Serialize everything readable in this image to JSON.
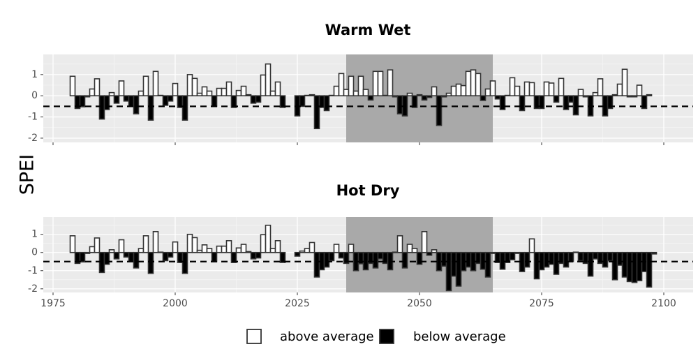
{
  "chart_data": {
    "type": "bar",
    "ylabel": "SPEI",
    "xlabel": "",
    "xlim": [
      1973,
      2106
    ],
    "ylim": [
      -2.2,
      1.95
    ],
    "x_ticks": [
      1975,
      2000,
      2025,
      2050,
      2075,
      2100
    ],
    "y_ticks": [
      1,
      0,
      -1,
      -2
    ],
    "threshold": -0.5,
    "highlight_period": [
      2035,
      2065
    ],
    "grid": true,
    "legend": {
      "position": "bottom",
      "items": [
        {
          "label": "above average",
          "fill": "#ffffff"
        },
        {
          "label": "below average",
          "fill": "#000000"
        }
      ]
    },
    "panels": [
      {
        "title": "Warm Wet",
        "segments": [
          {
            "start": 1979,
            "values": [
              0.92,
              -0.6,
              -0.52,
              -0.05,
              0.32,
              0.8,
              -1.1,
              -0.65,
              0.15,
              -0.35,
              0.7,
              -0.25,
              -0.5,
              -0.85,
              0.22,
              0.92,
              -1.15,
              1.15,
              0.02,
              -0.45,
              -0.25,
              0.58,
              -0.55,
              -1.15,
              1.0,
              0.82,
              0.12,
              0.42,
              0.22,
              -0.5,
              0.35,
              0.35,
              0.65,
              -0.55,
              0.25,
              0.45,
              0.05,
              -0.35,
              -0.3,
              0.98,
              1.5,
              0.22,
              0.65,
              -0.55
            ]
          },
          {
            "start": 2025,
            "values": [
              -0.95,
              -0.5,
              0.02,
              0.05,
              -1.55,
              -0.55,
              -0.7,
              0.02,
              0.45,
              1.05,
              0.3,
              0.92,
              0.22,
              0.92,
              0.3,
              -0.2,
              1.15,
              1.15,
              0.02,
              1.22,
              -0.05,
              -0.85,
              -0.95,
              0.12,
              -0.55,
              0.05,
              -0.2,
              -0.08,
              0.42,
              -1.4,
              -0.05,
              0.12,
              0.45,
              0.55,
              0.48,
              1.15,
              1.22,
              1.05,
              -0.22,
              0.32,
              0.7,
              -0.15,
              -0.65,
              0.02,
              0.85,
              0.45,
              -0.7,
              0.65,
              0.62,
              -0.6,
              -0.6,
              0.65,
              0.6,
              -0.3,
              0.82,
              -0.65,
              -0.3,
              -0.9,
              0.3,
              -0.05,
              -0.95,
              0.15,
              0.8,
              -0.95,
              -0.6,
              0.05,
              0.55,
              1.25,
              -0.05,
              -0.05,
              0.5,
              -0.6,
              0.05
            ]
          }
        ]
      },
      {
        "title": "Hot Dry",
        "segments": [
          {
            "start": 1979,
            "values": [
              0.92,
              -0.6,
              -0.52,
              -0.05,
              0.32,
              0.8,
              -1.1,
              -0.65,
              0.15,
              -0.35,
              0.7,
              -0.25,
              -0.5,
              -0.85,
              0.22,
              0.92,
              -1.15,
              1.15,
              0.02,
              -0.45,
              -0.25,
              0.58,
              -0.55,
              -1.15,
              1.0,
              0.82,
              0.12,
              0.42,
              0.22,
              -0.5,
              0.35,
              0.35,
              0.65,
              -0.55,
              0.25,
              0.45,
              0.05,
              -0.35,
              -0.3,
              0.98,
              1.5,
              0.22,
              0.65,
              -0.55
            ]
          },
          {
            "start": 2025,
            "values": [
              -0.2,
              0.08,
              0.22,
              0.55,
              -1.35,
              -0.95,
              -0.8,
              -0.45,
              0.45,
              -0.3,
              -0.6,
              0.45,
              -1.0,
              -0.62,
              -0.95,
              -0.6,
              -0.85,
              -0.35,
              -0.6,
              -0.95,
              0.02,
              0.92,
              -0.85,
              0.45,
              0.22,
              -0.65,
              1.15,
              -0.15,
              0.15,
              -1.0,
              -0.75,
              -2.1,
              -1.3,
              -1.85,
              -1.0,
              -0.8,
              -1.0,
              -0.6,
              -0.92,
              -1.35,
              -0.05,
              -0.55,
              -0.92,
              -0.55,
              -0.4,
              -0.05,
              -1.05,
              -0.8,
              0.75,
              -1.45,
              -0.95,
              -0.8,
              -0.65,
              -1.2,
              -0.6,
              -0.8,
              -0.5,
              0.02,
              -0.45,
              -0.6,
              -1.3,
              -0.35,
              -0.6,
              -0.8,
              -0.45,
              -1.5,
              -0.7,
              -1.35,
              -1.6,
              -1.65,
              -1.55,
              -1.05,
              -1.9,
              -0.08
            ]
          }
        ]
      }
    ]
  }
}
